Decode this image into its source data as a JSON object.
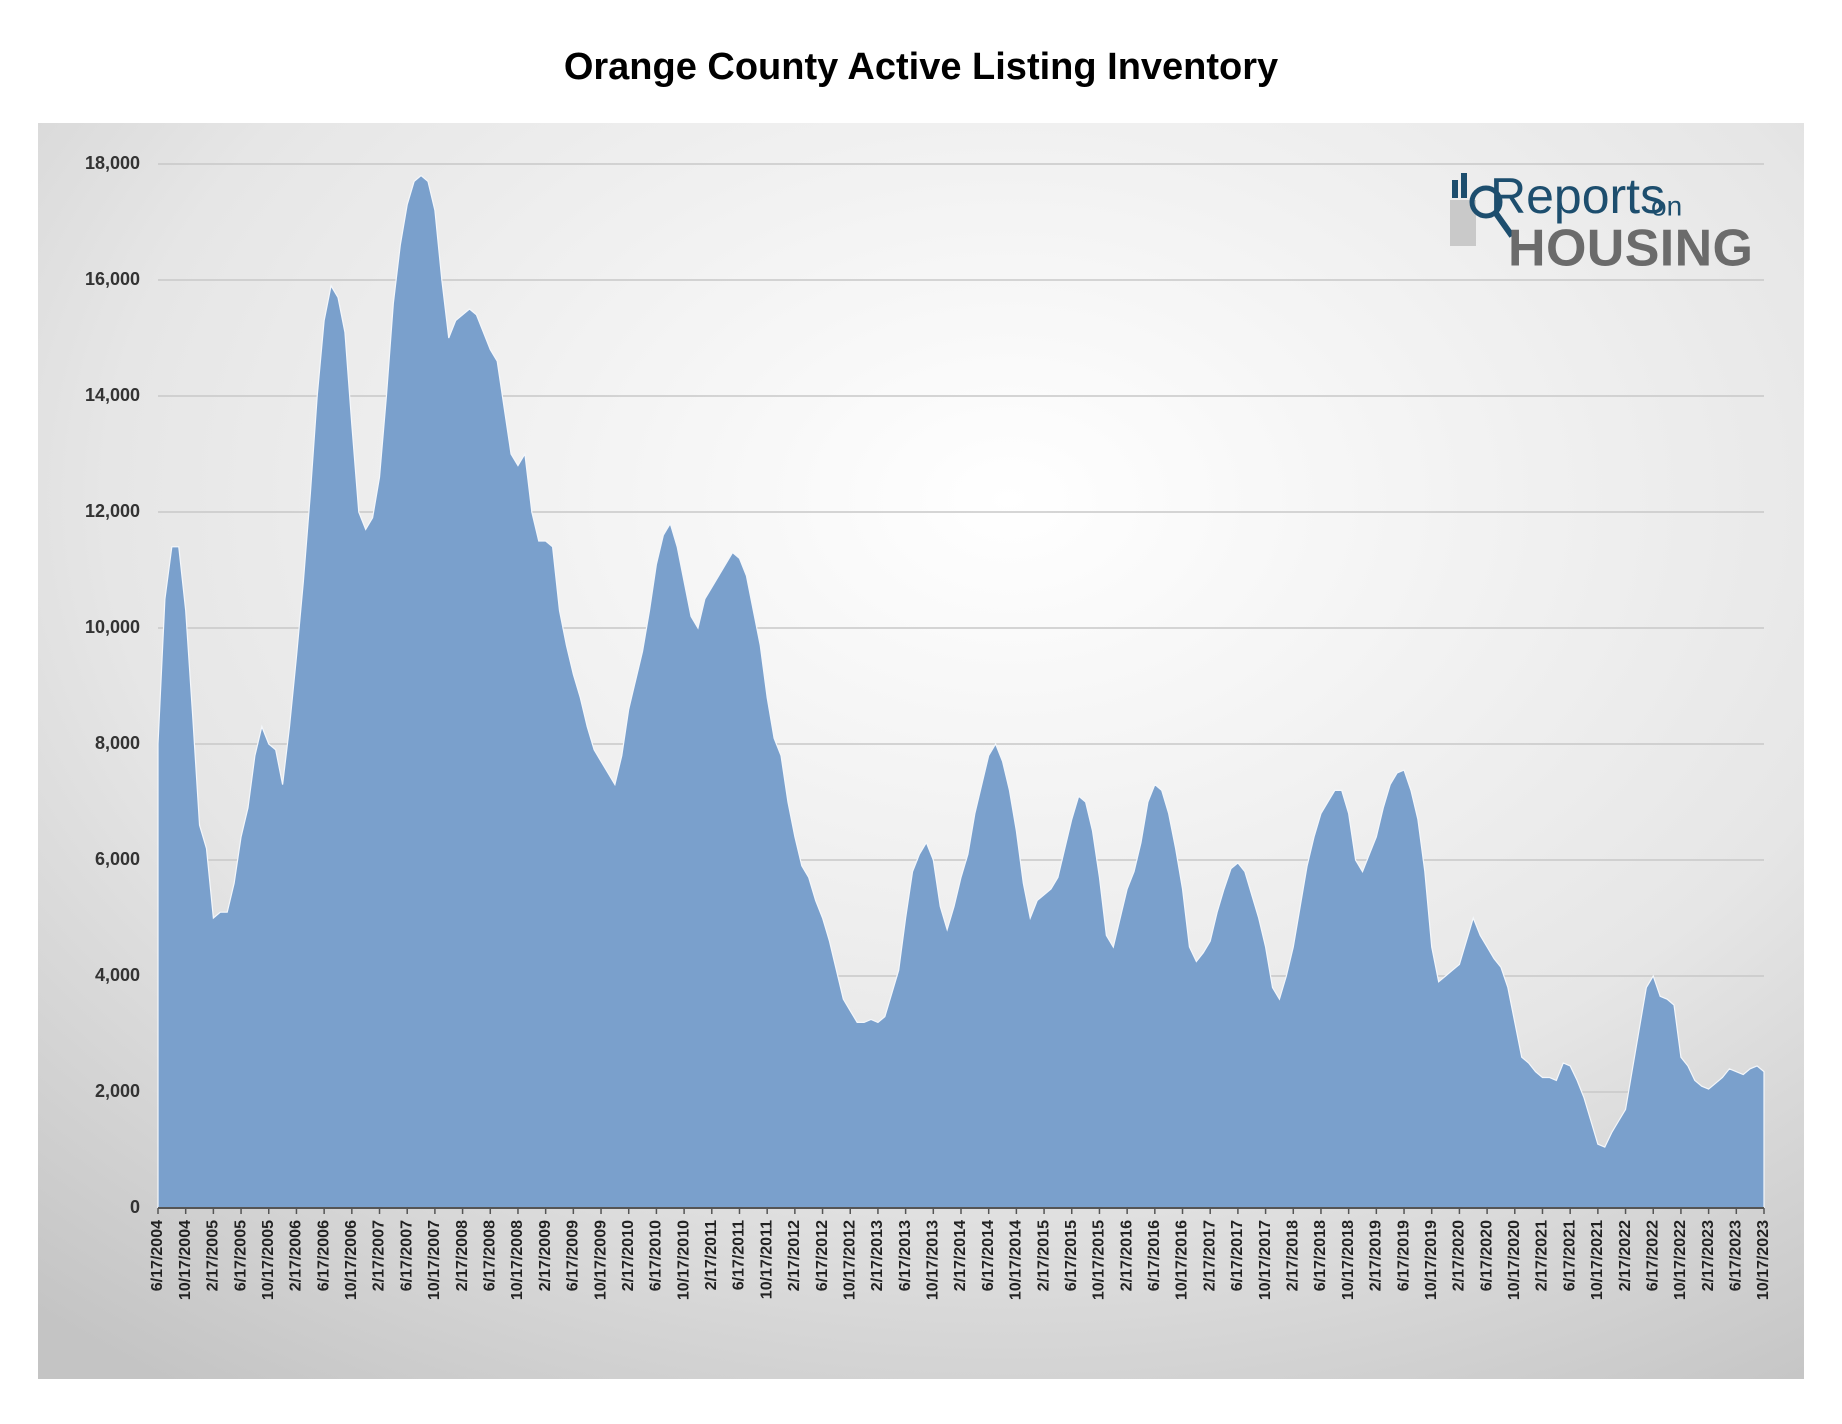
{
  "chart_data": {
    "type": "area",
    "title": "Orange County Active Listing Inventory",
    "categories": [
      "6/17/2004",
      null,
      null,
      null,
      "10/17/2004",
      null,
      null,
      null,
      "2/17/2005",
      null,
      null,
      null,
      "6/17/2005",
      null,
      null,
      null,
      "10/17/2005",
      null,
      null,
      null,
      "2/17/2006",
      null,
      null,
      null,
      "6/17/2006",
      null,
      null,
      null,
      "10/17/2006",
      null,
      null,
      null,
      "2/17/2007",
      null,
      null,
      null,
      "6/17/2007",
      null,
      null,
      null,
      "10/17/2007",
      null,
      null,
      null,
      "2/17/2008",
      null,
      null,
      null,
      "6/17/2008",
      null,
      null,
      null,
      "10/17/2008",
      null,
      null,
      null,
      "2/17/2009",
      null,
      null,
      null,
      "6/17/2009",
      null,
      null,
      null,
      "10/17/2009",
      null,
      null,
      null,
      "2/17/2010",
      null,
      null,
      null,
      "6/17/2010",
      null,
      null,
      null,
      "10/17/2010",
      null,
      null,
      null,
      "2/17/2011",
      null,
      null,
      null,
      "6/17/2011",
      null,
      null,
      null,
      "10/17/2011",
      null,
      null,
      null,
      "2/17/2012",
      null,
      null,
      null,
      "6/17/2012",
      null,
      null,
      null,
      "10/17/2012",
      null,
      null,
      null,
      "2/17/2013",
      null,
      null,
      null,
      "6/17/2013",
      null,
      null,
      null,
      "10/17/2013",
      null,
      null,
      null,
      "2/17/2014",
      null,
      null,
      null,
      "6/17/2014",
      null,
      null,
      null,
      "10/17/2014",
      null,
      null,
      null,
      "2/17/2015",
      null,
      null,
      null,
      "6/17/2015",
      null,
      null,
      null,
      "10/17/2015",
      null,
      null,
      null,
      "2/17/2016",
      null,
      null,
      null,
      "6/17/2016",
      null,
      null,
      null,
      "10/17/2016",
      null,
      null,
      null,
      "2/17/2017",
      null,
      null,
      null,
      "6/17/2017",
      null,
      null,
      null,
      "10/17/2017",
      null,
      null,
      null,
      "2/17/2018",
      null,
      null,
      null,
      "6/17/2018",
      null,
      null,
      null,
      "10/17/2018",
      null,
      null,
      null,
      "2/17/2019",
      null,
      null,
      null,
      "6/17/2019",
      null,
      null,
      null,
      "10/17/2019",
      null,
      null,
      null,
      "2/17/2020",
      null,
      null,
      null,
      "6/17/2020",
      null,
      null,
      null,
      "10/17/2020",
      null,
      null,
      null,
      "2/17/2021",
      null,
      null,
      null,
      "6/17/2021",
      null,
      null,
      null,
      "10/17/2021",
      null,
      null,
      null,
      "2/17/2022",
      null,
      null,
      null,
      "6/17/2022",
      null,
      null,
      null,
      "10/17/2022",
      null,
      null,
      null,
      "2/17/2023",
      null,
      null,
      null,
      "6/17/2023",
      null,
      null,
      null,
      "10/17/2023"
    ],
    "values": [
      8000,
      10500,
      11400,
      11400,
      10300,
      8500,
      6600,
      6200,
      5000,
      5100,
      5100,
      5600,
      6400,
      6900,
      7800,
      8300,
      8000,
      7900,
      7300,
      8300,
      9500,
      10800,
      12300,
      14000,
      15300,
      15900,
      15700,
      15100,
      13500,
      12000,
      11700,
      11900,
      12600,
      14000,
      15600,
      16600,
      17300,
      17700,
      17800,
      17700,
      17200,
      16000,
      15000,
      15300,
      15400,
      15500,
      15400,
      15100,
      14800,
      14600,
      13800,
      13000,
      12800,
      13000,
      12000,
      11500,
      11500,
      11400,
      10300,
      9700,
      9200,
      8800,
      8300,
      7900,
      7700,
      7500,
      7300,
      7800,
      8600,
      9100,
      9600,
      10300,
      11100,
      11600,
      11800,
      11400,
      10800,
      10200,
      10000,
      10500,
      10700,
      10900,
      11100,
      11300,
      11200,
      10900,
      10300,
      9700,
      8800,
      8100,
      7800,
      7000,
      6400,
      5900,
      5700,
      5300,
      5000,
      4600,
      4100,
      3600,
      3400,
      3200,
      3200,
      3250,
      3200,
      3300,
      3700,
      4100,
      5000,
      5800,
      6100,
      6300,
      6000,
      5200,
      4800,
      5200,
      5700,
      6100,
      6800,
      7300,
      7800,
      8000,
      7700,
      7200,
      6500,
      5600,
      5000,
      5300,
      5400,
      5500,
      5700,
      6200,
      6700,
      7100,
      7000,
      6500,
      5700,
      4700,
      4500,
      5000,
      5500,
      5800,
      6300,
      7000,
      7300,
      7200,
      6800,
      6200,
      5500,
      4500,
      4250,
      4400,
      4600,
      5100,
      5500,
      5850,
      5950,
      5800,
      5400,
      5000,
      4500,
      3800,
      3600,
      4000,
      4500,
      5200,
      5900,
      6400,
      6800,
      7000,
      7200,
      7200,
      6800,
      6000,
      5800,
      6100,
      6400,
      6900,
      7300,
      7500,
      7550,
      7200,
      6700,
      5800,
      4500,
      3900,
      4000,
      4100,
      4200,
      4600,
      5000,
      4700,
      4500,
      4300,
      4150,
      3800,
      3200,
      2600,
      2500,
      2350,
      2250,
      2250,
      2200,
      2500,
      2450,
      2200,
      1900,
      1500,
      1100,
      1050,
      1300,
      1500,
      1700,
      2400,
      3100,
      3800,
      4000,
      3650,
      3600,
      3500,
      2600,
      2450,
      2200,
      2100,
      2050,
      2150,
      2250,
      2400,
      2350,
      2300,
      2400,
      2450,
      2350
    ],
    "color": "#7aa0cc",
    "ylim": [
      0,
      18000
    ],
    "yticks": [
      0,
      {
        "value": 2000,
        "label": "2,000"
      },
      {
        "value": 4000,
        "label": "4,000"
      },
      {
        "value": 6000,
        "label": "6,000"
      },
      {
        "value": 8000,
        "label": "8,000"
      },
      {
        "value": 10000,
        "label": "10,000"
      },
      {
        "value": 12000,
        "label": "12,000"
      },
      {
        "value": 14000,
        "label": "14,000"
      },
      {
        "value": 16000,
        "label": "16,000"
      },
      {
        "value": 18000,
        "label": "18,000"
      }
    ],
    "grid": true
  },
  "logo": {
    "brand": "Reports",
    "on": "on",
    "housing": "HOUSING"
  }
}
